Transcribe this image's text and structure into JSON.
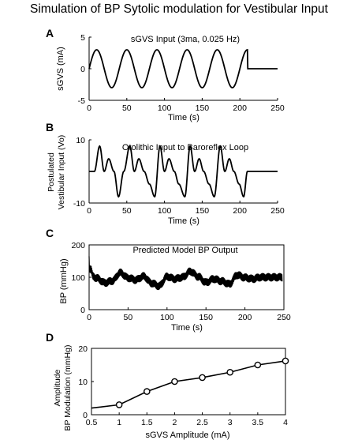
{
  "figure_title": "Simulation of BP Sytolic modulation for Vestibular Input",
  "chart_data": [
    {
      "panel": "A",
      "type": "line",
      "title": "sGVS Input (3ma, 0.025 Hz)",
      "xlabel": "Time (s)",
      "ylabel": "sGVS (mA)",
      "xlim": [
        0,
        250
      ],
      "ylim": [
        -5,
        5
      ],
      "xticks": [
        "0",
        "50",
        "100",
        "150",
        "200",
        "250"
      ],
      "yticks": [
        "5",
        "0",
        "-5"
      ],
      "series": [
        {
          "function": "sine",
          "amplitude": 3,
          "frequency_hz": 0.025,
          "t_start": 0,
          "t_end": 210,
          "values_after_end": 0,
          "t_max": 250
        }
      ]
    },
    {
      "panel": "B",
      "type": "line",
      "title": "Otolithic Input to Baroreflex Loop",
      "xlabel": "Time (s)",
      "ylabel_lines": [
        "Postulated",
        "Vestibular Input (Vo)"
      ],
      "xlim": [
        0,
        250
      ],
      "ylim": [
        -10,
        10
      ],
      "xticks": [
        "0",
        "50",
        "100",
        "150",
        "200",
        "250"
      ],
      "yticks": [
        "10",
        "-10"
      ],
      "series": [
        {
          "x": [
            0,
            7,
            14,
            20,
            26,
            33,
            39,
            46,
            54,
            60,
            66,
            73,
            80,
            87,
            94,
            100,
            106,
            113,
            119,
            127,
            134,
            140,
            146,
            152,
            159,
            166,
            174,
            180,
            186,
            192,
            199,
            205,
            210,
            250
          ],
          "y": [
            0,
            0,
            8,
            0,
            4,
            0,
            -8,
            0,
            8,
            0,
            4,
            0,
            -4,
            -8,
            8,
            0,
            4,
            0,
            -4,
            -8,
            8,
            0,
            4,
            0,
            -4,
            -8,
            8,
            0,
            4,
            0,
            -4,
            -8,
            0,
            0
          ]
        }
      ]
    },
    {
      "panel": "C",
      "type": "line",
      "title": "Predicted Model BP Output",
      "xlabel": "Time (s)",
      "ylabel": "BP   (mmHg)",
      "xlim": [
        0,
        250
      ],
      "ylim": [
        0,
        200
      ],
      "xticks": [
        "0",
        "50",
        "100",
        "150",
        "200",
        "250"
      ],
      "yticks": [
        "200",
        "100",
        "0"
      ],
      "series": [
        {
          "x": [
            0,
            2,
            5,
            10,
            20,
            30,
            40,
            50,
            60,
            70,
            80,
            90,
            100,
            110,
            120,
            130,
            140,
            150,
            160,
            170,
            180,
            190,
            200,
            210,
            220,
            230,
            240,
            248
          ],
          "y": [
            130,
            125,
            103,
            97,
            83,
            89,
            114,
            98,
            92,
            103,
            82,
            73,
            102,
            95,
            100,
            118,
            102,
            84,
            95,
            88,
            79,
            107,
            99,
            95,
            100,
            100,
            100,
            100
          ],
          "band_halfwidth": 13,
          "initial_peak": 165
        }
      ]
    },
    {
      "panel": "D",
      "type": "line",
      "title": "",
      "xlabel": "sGVS Amplitude (mA)",
      "ylabel_lines": [
        "Amplitude",
        "BP Modulation (mmHg)"
      ],
      "xlim": [
        0.5,
        4
      ],
      "ylim": [
        0,
        20
      ],
      "xticks": [
        "0.5",
        "1",
        "1.5",
        "2",
        "2.5",
        "3",
        "3.5",
        "4"
      ],
      "yticks": [
        "20",
        "10",
        "0"
      ],
      "marker": "circle-open",
      "series": [
        {
          "x": [
            0.5,
            1,
            1.5,
            2,
            2.5,
            3,
            3.5,
            4
          ],
          "y": [
            2,
            3,
            7,
            10,
            11.2,
            12.8,
            15,
            16.2
          ],
          "markers_from_index": 1
        }
      ]
    }
  ]
}
